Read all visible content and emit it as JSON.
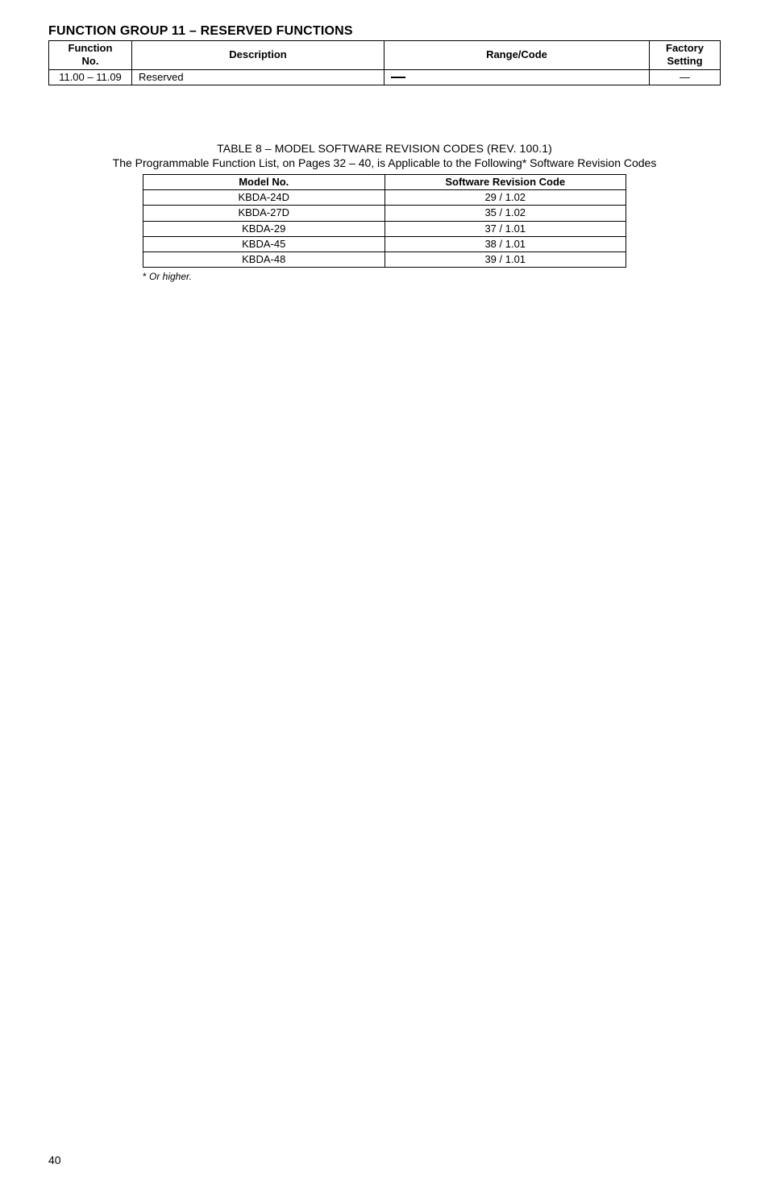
{
  "section_title": "FUNCTION GROUP 11 – RESERVED FUNCTIONS",
  "func_table": {
    "headers": {
      "no_line1": "Function",
      "no_line2": "No.",
      "desc": "Description",
      "range": "Range/Code",
      "setting_line1": "Factory",
      "setting_line2": "Setting"
    },
    "row": {
      "no": "11.00 – 11.09",
      "desc": "Reserved"
    }
  },
  "rev_title": "TABLE 8 – MODEL SOFTWARE REVISION CODES (REV. 100.1)",
  "rev_sub": "The Programmable Function List, on Pages 32 – 40, is Applicable to the Following* Software Revision Codes",
  "rev_table": {
    "headers": {
      "model": "Model No.",
      "code": "Software Revision Code"
    },
    "rows": [
      {
        "model": "KBDA-24D",
        "code": "29 / 1.02"
      },
      {
        "model": "KBDA-27D",
        "code": "35 / 1.02"
      },
      {
        "model": "KBDA-29",
        "code": "37 / 1.01"
      },
      {
        "model": "KBDA-45",
        "code": "38 / 1.01"
      },
      {
        "model": "KBDA-48",
        "code": "39 / 1.01"
      }
    ]
  },
  "footnote_star": "*",
  "footnote_text": " Or higher.",
  "page_number": "40"
}
